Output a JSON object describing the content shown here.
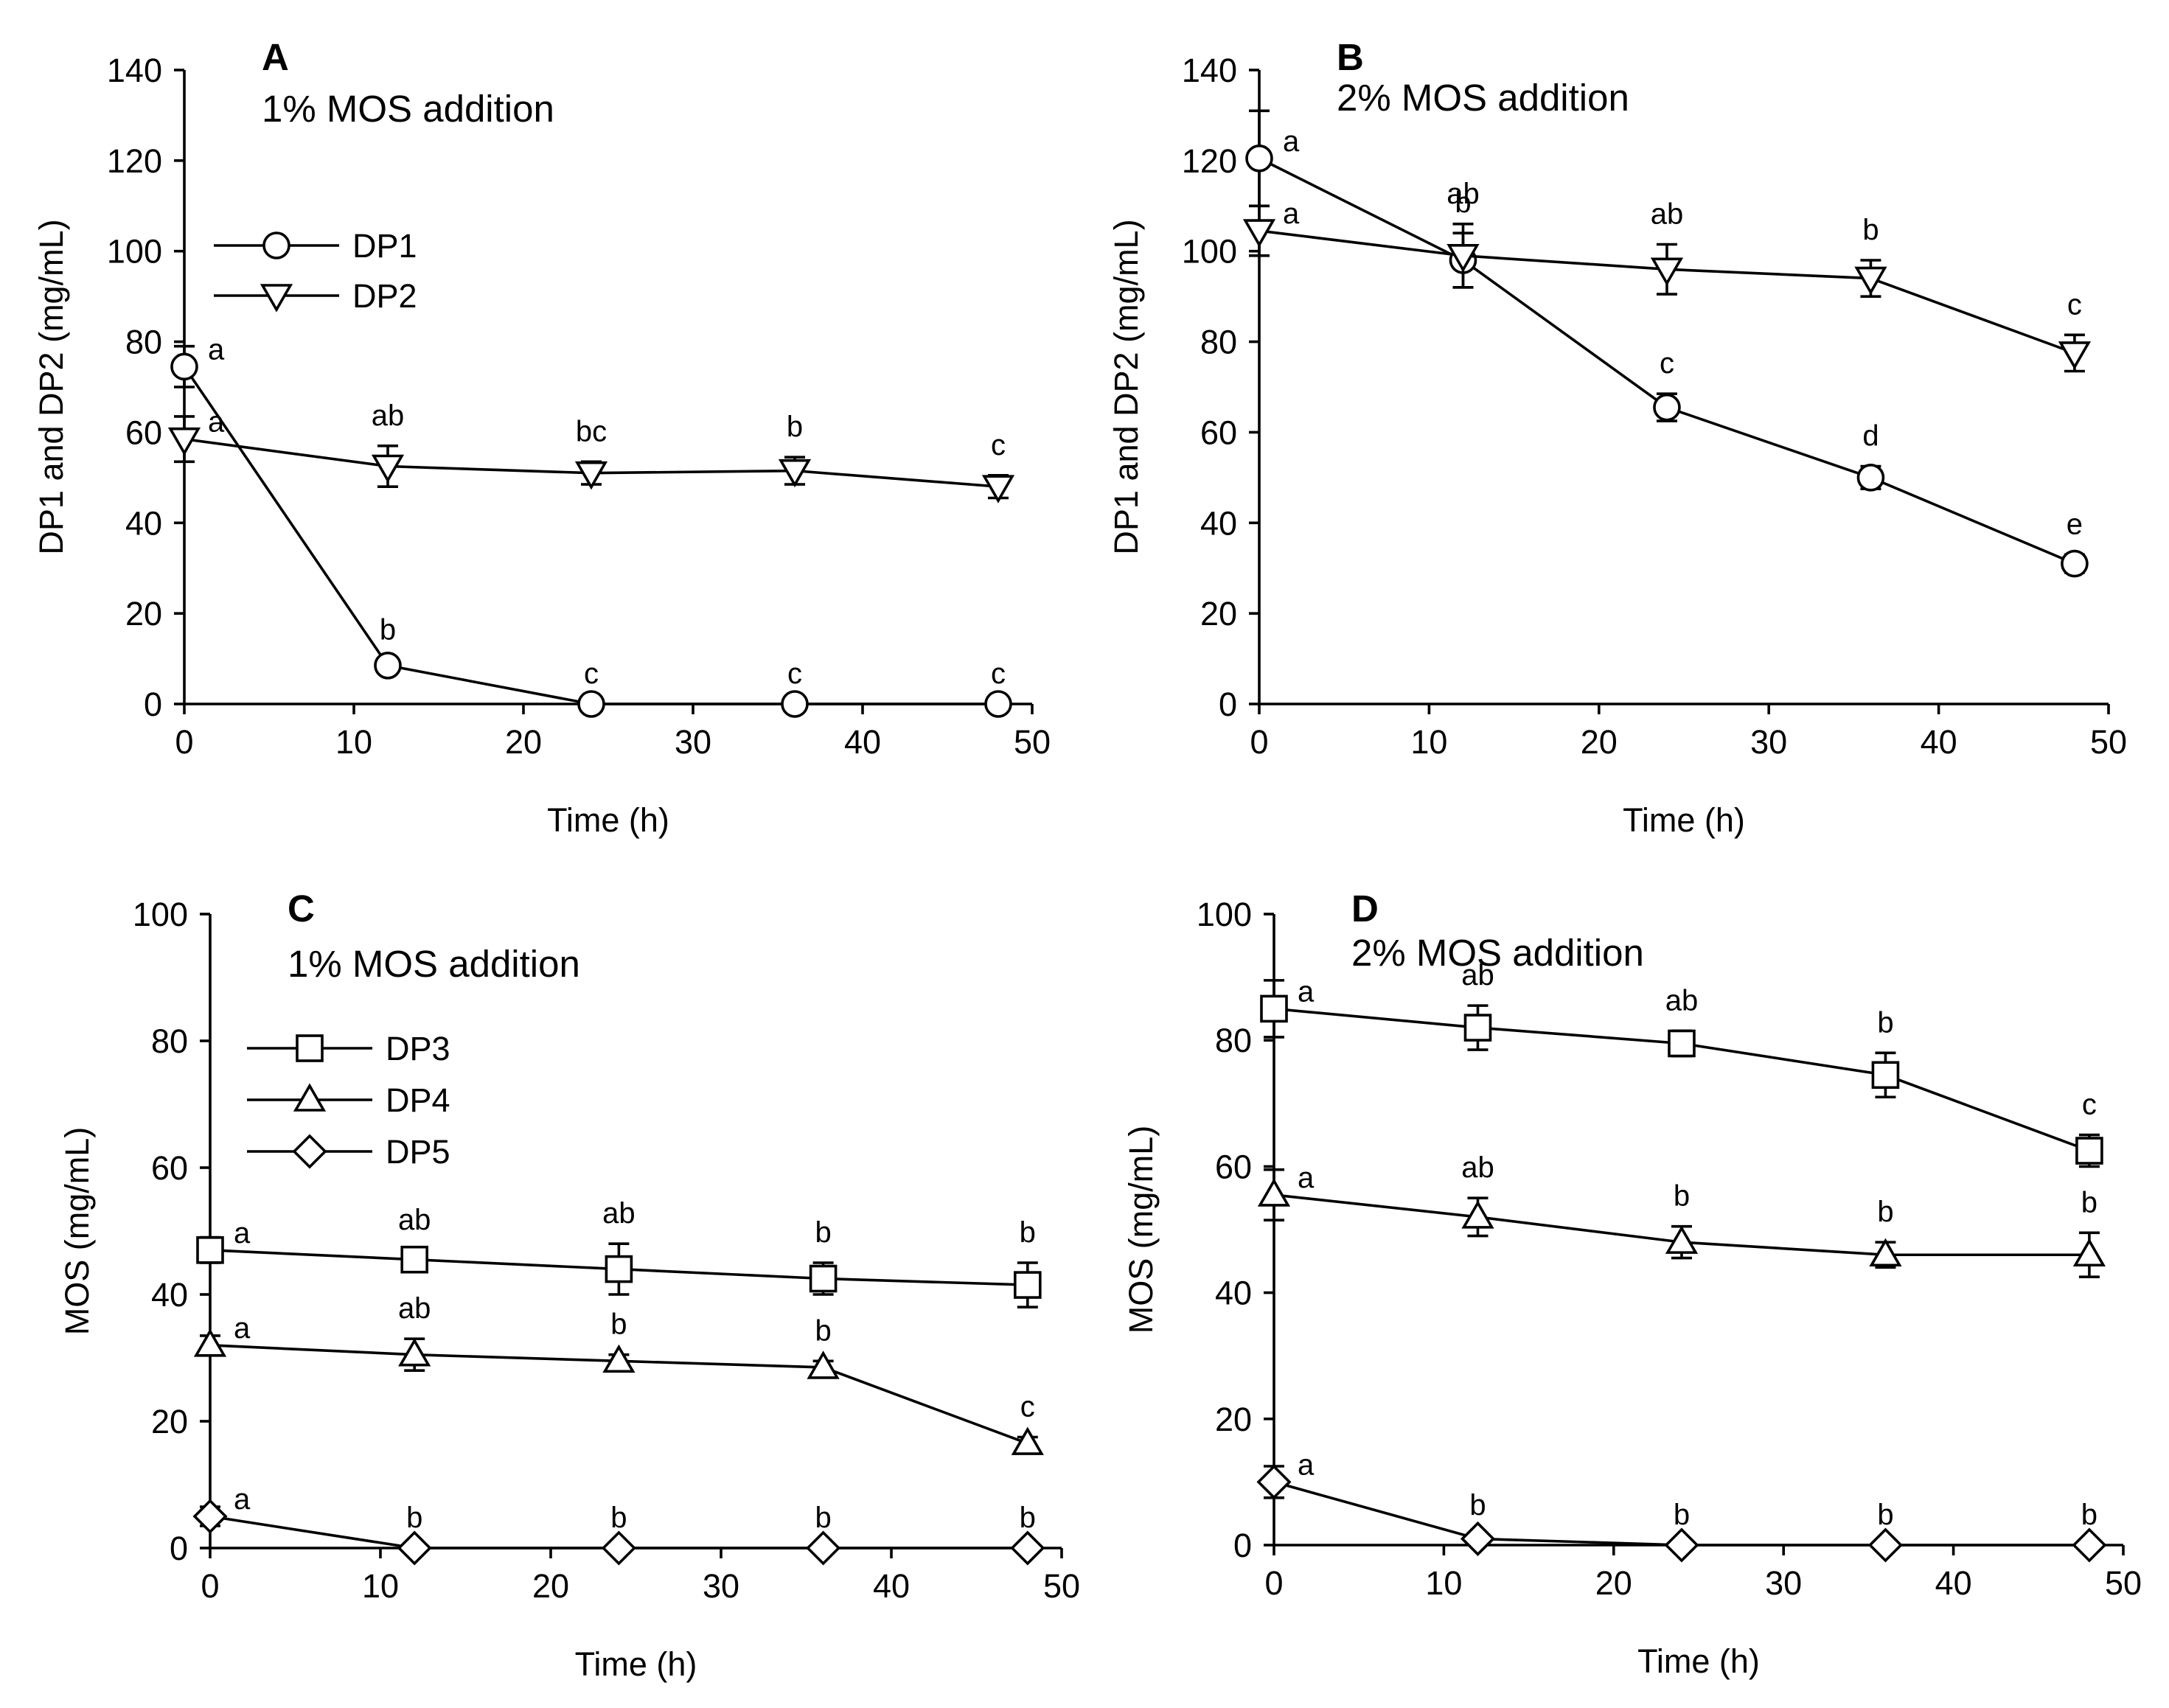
{
  "figure": {
    "panels": [
      "A",
      "B",
      "C",
      "D"
    ]
  },
  "chart_data": [
    {
      "id": "A",
      "type": "line",
      "panel_letter": "A",
      "title": "1% MOS addition",
      "xlabel": "Time (h)",
      "ylabel": "DP1 and DP2 (mg/mL)",
      "xlim": [
        0,
        50
      ],
      "ylim": [
        0,
        140
      ],
      "xticks": [
        0,
        10,
        20,
        30,
        40,
        50
      ],
      "yticks": [
        0,
        20,
        40,
        60,
        80,
        100,
        120,
        140
      ],
      "x": [
        0,
        12,
        24,
        36,
        48
      ],
      "legend_position": "upper-left",
      "series": [
        {
          "name": "DP1",
          "marker": "circle",
          "values": [
            74.5,
            8.5,
            0,
            0,
            0
          ],
          "errors": [
            4.5,
            1.2,
            0,
            0,
            0
          ],
          "labels": [
            "a",
            "b",
            "c",
            "c",
            "c"
          ]
        },
        {
          "name": "DP2",
          "marker": "triangle-down",
          "values": [
            58.5,
            52.5,
            51,
            51.5,
            48
          ],
          "errors": [
            5,
            4.5,
            2.5,
            3,
            2.5
          ],
          "labels": [
            "a",
            "ab",
            "bc",
            "b",
            "c"
          ]
        }
      ]
    },
    {
      "id": "B",
      "type": "line",
      "panel_letter": "B",
      "title": "2% MOS addition",
      "xlabel": "Time (h)",
      "ylabel": "DP1 and DP2 (mg/mL)",
      "xlim": [
        0,
        50
      ],
      "ylim": [
        0,
        140
      ],
      "xticks": [
        0,
        10,
        20,
        30,
        40,
        50
      ],
      "yticks": [
        0,
        20,
        40,
        60,
        80,
        100,
        120,
        140
      ],
      "x": [
        0,
        12,
        24,
        36,
        48
      ],
      "legend_position": "none",
      "series": [
        {
          "name": "DP1",
          "marker": "circle",
          "values": [
            120.5,
            98,
            65.5,
            50,
            31
          ],
          "errors": [
            10.5,
            6,
            3,
            2.5,
            2
          ],
          "labels": [
            "a",
            "b",
            "c",
            "d",
            "e"
          ]
        },
        {
          "name": "DP2",
          "marker": "triangle-down",
          "values": [
            104.5,
            99,
            96,
            94,
            77.5
          ],
          "errors": [
            5.5,
            7,
            5.5,
            4,
            4
          ],
          "labels": [
            "a",
            "ab",
            "ab",
            "b",
            "c"
          ]
        }
      ]
    },
    {
      "id": "C",
      "type": "line",
      "panel_letter": "C",
      "title": "1% MOS addition",
      "xlabel": "Time (h)",
      "ylabel": "MOS (mg/mL)",
      "xlim": [
        0,
        50
      ],
      "ylim": [
        0,
        100
      ],
      "xticks": [
        0,
        10,
        20,
        30,
        40,
        50
      ],
      "yticks": [
        0,
        20,
        40,
        60,
        80,
        100
      ],
      "x": [
        0,
        12,
        24,
        36,
        48
      ],
      "legend_position": "upper-left",
      "series": [
        {
          "name": "DP3",
          "marker": "square",
          "values": [
            47,
            45.5,
            44,
            42.5,
            41.5
          ],
          "errors": [
            2,
            1.5,
            4,
            2.5,
            3.5
          ],
          "labels": [
            "a",
            "ab",
            "ab",
            "b",
            "b"
          ]
        },
        {
          "name": "DP4",
          "marker": "triangle-up",
          "values": [
            32,
            30.5,
            29.5,
            28.5,
            16.5
          ],
          "errors": [
            1.5,
            2.5,
            1,
            1,
            1
          ],
          "labels": [
            "a",
            "ab",
            "b",
            "b",
            "c"
          ]
        },
        {
          "name": "DP5",
          "marker": "diamond",
          "values": [
            5,
            0,
            0,
            0,
            0
          ],
          "errors": [
            1.5,
            0,
            0,
            0,
            0
          ],
          "labels": [
            "a",
            "b",
            "b",
            "b",
            "b"
          ]
        }
      ]
    },
    {
      "id": "D",
      "type": "line",
      "panel_letter": "D",
      "title": "2% MOS addition",
      "xlabel": "Time (h)",
      "ylabel": "MOS (mg/mL)",
      "xlim": [
        0,
        50
      ],
      "ylim": [
        0,
        100
      ],
      "xticks": [
        0,
        10,
        20,
        30,
        40,
        50
      ],
      "yticks": [
        0,
        20,
        40,
        60,
        80,
        100
      ],
      "x": [
        0,
        12,
        24,
        36,
        48
      ],
      "legend_position": "none",
      "series": [
        {
          "name": "DP3",
          "marker": "square",
          "values": [
            85,
            82,
            79.5,
            74.5,
            62.5
          ],
          "errors": [
            4.5,
            3.5,
            2,
            3.5,
            2.5
          ],
          "labels": [
            "a",
            "ab",
            "ab",
            "b",
            "c"
          ]
        },
        {
          "name": "DP4",
          "marker": "triangle-up",
          "values": [
            55.5,
            52,
            48,
            46,
            46
          ],
          "errors": [
            4,
            3,
            2.5,
            2,
            3.5
          ],
          "labels": [
            "a",
            "ab",
            "b",
            "b",
            "b"
          ]
        },
        {
          "name": "DP5",
          "marker": "diamond",
          "values": [
            10,
            1,
            0,
            0,
            0
          ],
          "errors": [
            2.5,
            0.5,
            0,
            0,
            0
          ],
          "labels": [
            "a",
            "b",
            "b",
            "b",
            "b"
          ]
        }
      ]
    }
  ]
}
